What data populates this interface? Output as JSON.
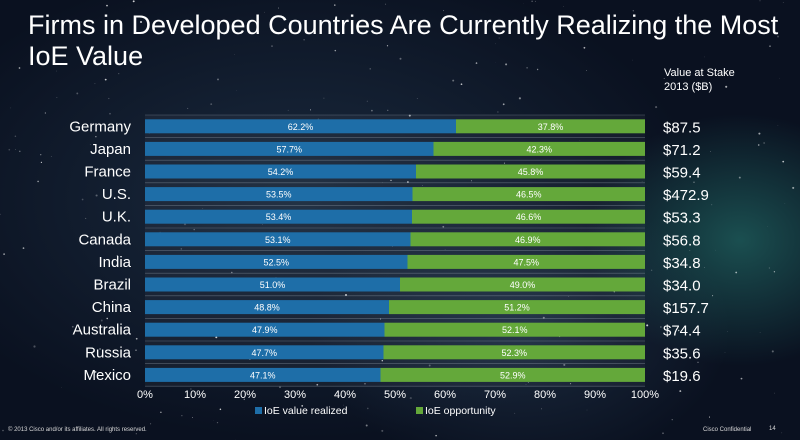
{
  "slide": {
    "title": "Firms in Developed Countries Are Currently Realizing the Most IoE Value",
    "value_header_line1": "Value at Stake",
    "value_header_line2": "2013 ($B)",
    "footer_left": "© 2013 Cisco and/or its affiliates. All rights reserved.",
    "footer_right": "Cisco Confidential",
    "page_number": "14"
  },
  "colors": {
    "realized": "#1e6ea8",
    "opportunity": "#64a83a",
    "background": "#0d1626"
  },
  "chart_data": {
    "type": "bar",
    "orientation": "horizontal",
    "stacked": true,
    "categories": [
      "Germany",
      "Japan",
      "France",
      "U.S.",
      "U.K.",
      "Canada",
      "India",
      "Brazil",
      "China",
      "Australia",
      "Russia",
      "Mexico"
    ],
    "series": [
      {
        "name": "IoE value realized",
        "values": [
          62.2,
          57.7,
          54.2,
          53.5,
          53.4,
          53.1,
          52.5,
          51.0,
          48.8,
          47.9,
          47.7,
          47.1
        ],
        "labels": [
          "62.2%",
          "57.7%",
          "54.2%",
          "53.5%",
          "53.4%",
          "53.1%",
          "52.5%",
          "51.0%",
          "48.8%",
          "47.9%",
          "47.7%",
          "47.1%"
        ]
      },
      {
        "name": "IoE opportunity",
        "values": [
          37.8,
          42.3,
          45.8,
          46.5,
          46.6,
          46.9,
          47.5,
          49.0,
          51.2,
          52.1,
          52.3,
          52.9
        ],
        "labels": [
          "37.8%",
          "42.3%",
          "45.8%",
          "46.5%",
          "46.6%",
          "46.9%",
          "47.5%",
          "49.0%",
          "51.2%",
          "52.1%",
          "52.3%",
          "52.9%"
        ]
      }
    ],
    "value_at_stake": [
      "$87.5",
      "$71.2",
      "$59.4",
      "$472.9",
      "$53.3",
      "$56.8",
      "$34.8",
      "$34.0",
      "$157.7",
      "$74.4",
      "$35.6",
      "$19.6"
    ],
    "x_ticks": [
      "0%",
      "10%",
      "20%",
      "30%",
      "40%",
      "50%",
      "60%",
      "70%",
      "80%",
      "90%",
      "100%"
    ],
    "xlim": [
      0,
      100
    ],
    "legend": [
      "IoE value realized",
      "IoE opportunity"
    ],
    "legend_position": "bottom"
  }
}
